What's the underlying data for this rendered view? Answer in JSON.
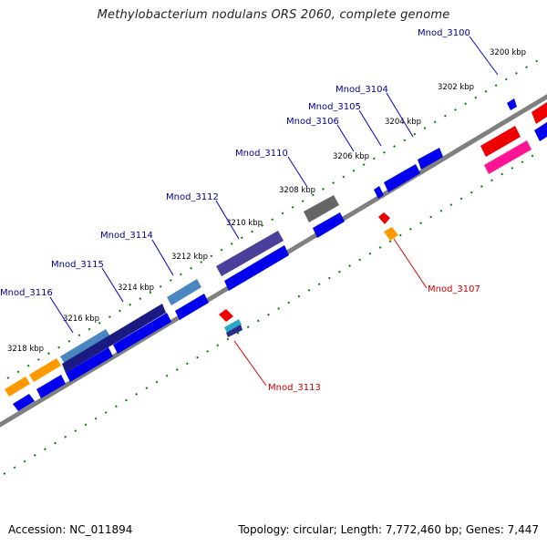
{
  "title": "Methylobacterium nodulans ORS 2060, complete genome",
  "footer": {
    "accession": "Accession: NC_011894",
    "summary": "Topology: circular; Length: 7,772,460 bp; Genes: 7,447"
  },
  "kbp_ticks": [
    "3200 kbp",
    "3202 kbp",
    "3204 kbp",
    "3206 kbp",
    "3208 kbp",
    "3210 kbp",
    "3212 kbp",
    "3214 kbp",
    "3216 kbp",
    "3218 kbp"
  ],
  "gene_labels_forward": [
    "Mnod_3100",
    "Mnod_3104",
    "Mnod_3105",
    "Mnod_3106",
    "Mnod_3110",
    "Mnod_3112",
    "Mnod_3114",
    "Mnod_3115",
    "Mnod_3116"
  ],
  "gene_labels_reverse": [
    "Mnod_3107",
    "Mnod_3113"
  ],
  "colors": {
    "backbone": "#808080",
    "tick": "#008000",
    "forward_label": "#000099",
    "reverse_label": "#cc0000",
    "blue": "#0000ee",
    "red": "#ee0000",
    "orange": "#ff9900",
    "pink": "#ff1493",
    "navy": "#2a2a8a",
    "steel": "#4a86c0",
    "gray": "#666666",
    "purple": "#5a4aa0"
  }
}
